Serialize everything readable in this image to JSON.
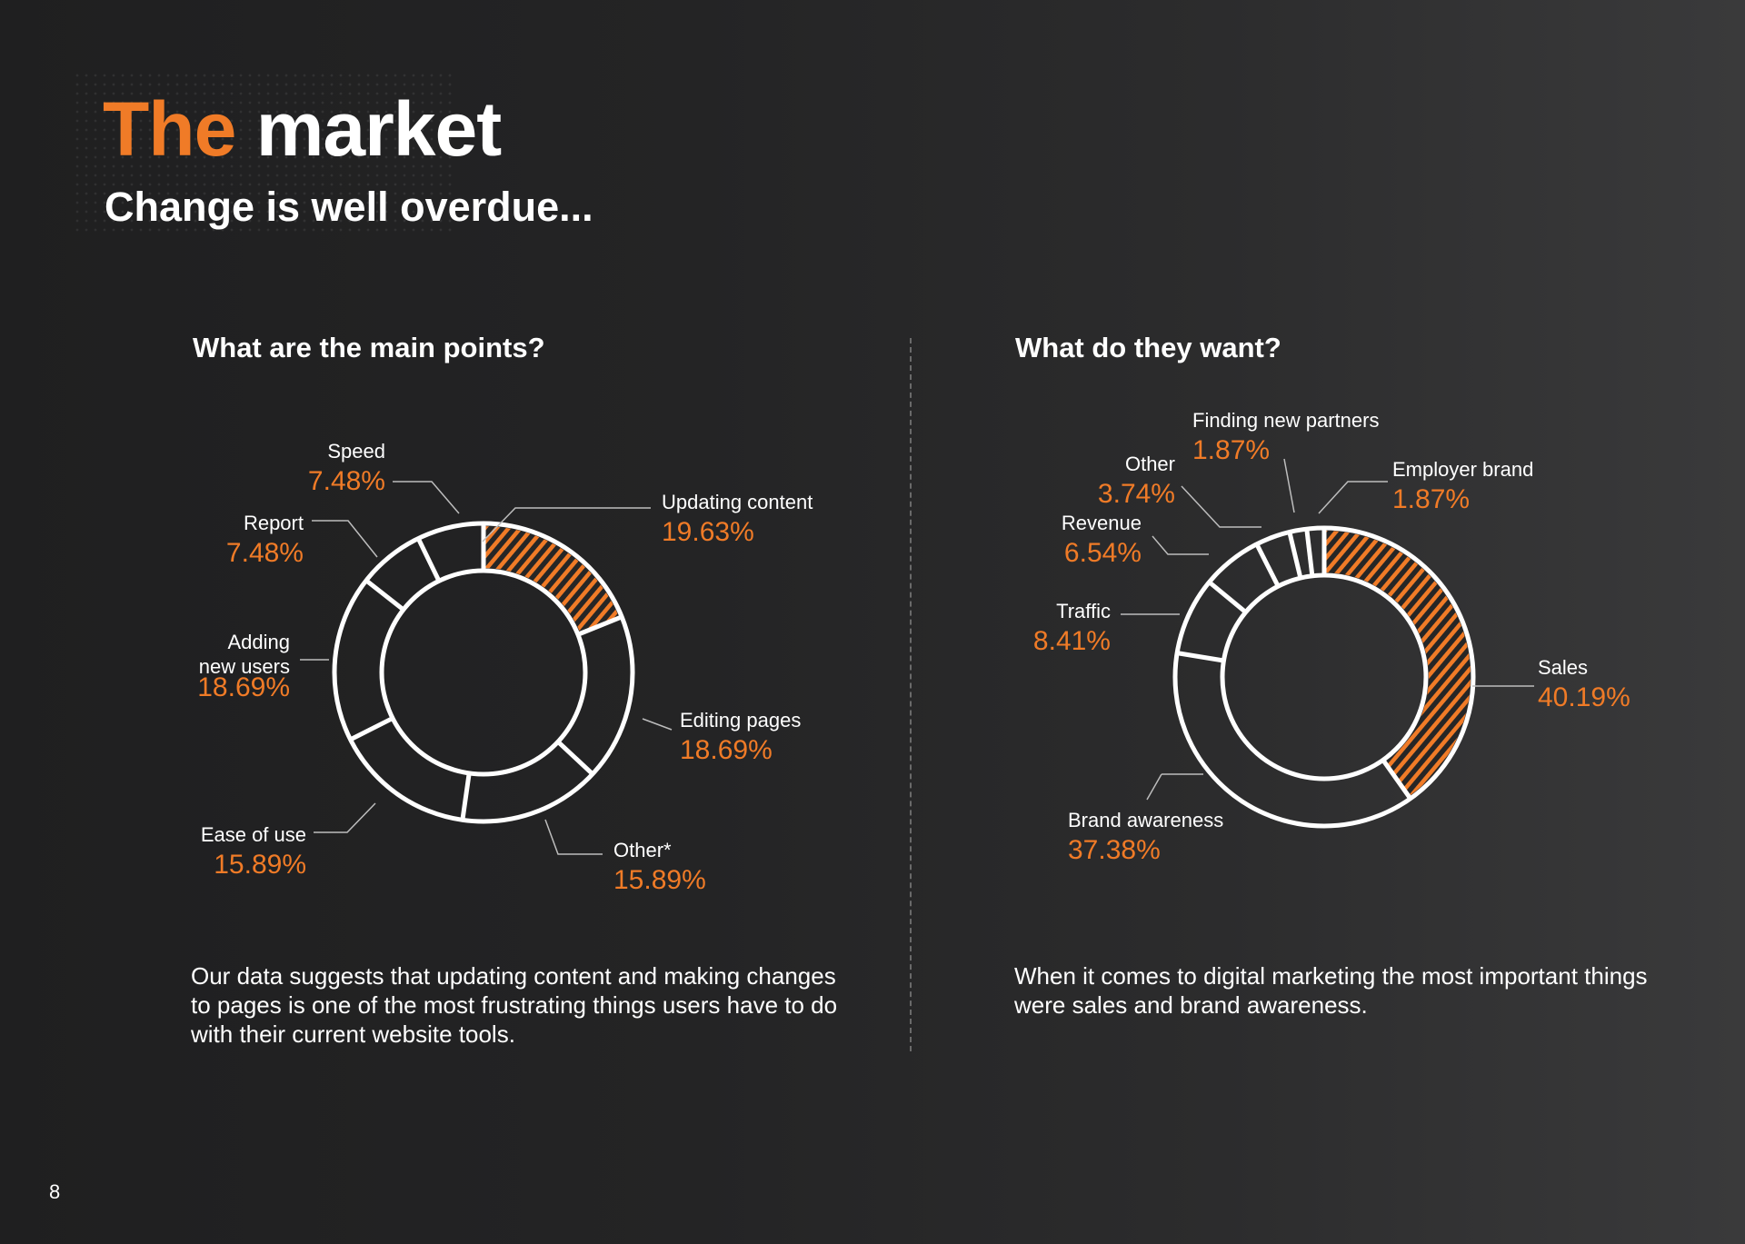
{
  "header": {
    "title_accent": "The",
    "title_main": "market",
    "subtitle": "Change is well overdue..."
  },
  "colors": {
    "accent": "#f07b27",
    "ring": "#ffffff",
    "background": "#242425"
  },
  "chart_data": [
    {
      "type": "pie",
      "title": "What are the main points?",
      "slices": [
        {
          "label": "Updating content",
          "value": 19.63,
          "value_label": "19.63%",
          "highlight": true
        },
        {
          "label": "Editing pages",
          "value": 18.69,
          "value_label": "18.69%",
          "highlight": false
        },
        {
          "label": "Other*",
          "value": 15.89,
          "value_label": "15.89%",
          "highlight": false
        },
        {
          "label": "Ease of use",
          "value": 15.89,
          "value_label": "15.89%",
          "highlight": false
        },
        {
          "label": "Adding new users",
          "value": 18.69,
          "value_label": "18.69%",
          "highlight": false
        },
        {
          "label": "Report",
          "value": 7.48,
          "value_label": "7.48%",
          "highlight": false
        },
        {
          "label": "Speed",
          "value": 7.48,
          "value_label": "7.48%",
          "highlight": false
        }
      ]
    },
    {
      "type": "pie",
      "title": "What do they want?",
      "slices": [
        {
          "label": "Sales",
          "value": 40.19,
          "value_label": "40.19%",
          "highlight": true
        },
        {
          "label": "Brand awareness",
          "value": 37.38,
          "value_label": "37.38%",
          "highlight": false
        },
        {
          "label": "Traffic",
          "value": 8.41,
          "value_label": "8.41%",
          "highlight": false
        },
        {
          "label": "Revenue",
          "value": 6.54,
          "value_label": "6.54%",
          "highlight": false
        },
        {
          "label": "Other",
          "value": 3.74,
          "value_label": "3.74%",
          "highlight": false
        },
        {
          "label": "Finding new partners",
          "value": 1.87,
          "value_label": "1.87%",
          "highlight": false
        },
        {
          "label": "Employer brand",
          "value": 1.87,
          "value_label": "1.87%",
          "highlight": false
        }
      ]
    }
  ],
  "descriptions": {
    "left": "Our data suggests that updating content and making changes to pages is one of the most frustrating things users have to do with their current website tools.",
    "right": "When it comes to digital marketing the most important things were sales and brand awareness."
  },
  "page_number": "8"
}
